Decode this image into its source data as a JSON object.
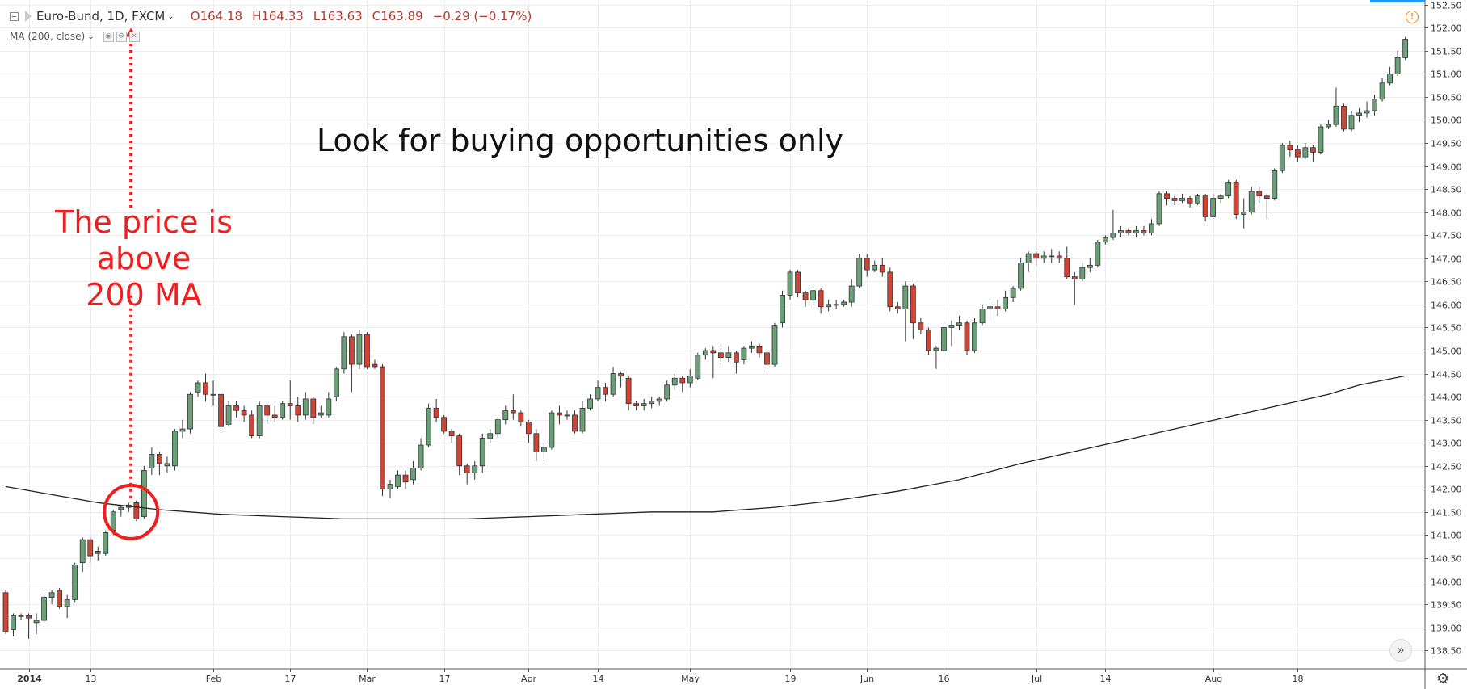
{
  "header": {
    "symbol": "Euro-Bund, 1D, FXCM",
    "open": "O164.18",
    "high": "H164.33",
    "low": "L163.63",
    "close": "C163.89",
    "change": "−0.29 (−0.17%)",
    "indicator": "MA (200, close)"
  },
  "annotations": {
    "headline": "Look for buying opportunities only",
    "callout_line1": "The price is",
    "callout_line2": "above",
    "callout_line3": "200 MA"
  },
  "colors": {
    "up": "#6a9f77",
    "down": "#d04436",
    "ma": "#222222",
    "annotation": "#f01e1e",
    "grid": "#ececec"
  },
  "icons": {
    "warning": "warning-circle-icon",
    "scroll": "double-chevron-right-icon",
    "settings": "gear-icon"
  },
  "chart_data": {
    "type": "candlestick",
    "symbol": "Euro-Bund",
    "timeframe": "1D",
    "ylim": [
      138.1,
      152.6
    ],
    "y_ticks": [
      138.5,
      139.0,
      139.5,
      140.0,
      140.5,
      141.0,
      141.5,
      142.0,
      142.5,
      143.0,
      143.5,
      144.0,
      144.5,
      145.0,
      145.5,
      146.0,
      146.5,
      147.0,
      147.5,
      148.0,
      148.5,
      149.0,
      149.5,
      150.0,
      150.5,
      151.0,
      151.5,
      152.0,
      152.5
    ],
    "y_tick_labels": [
      "138.50",
      "139.00",
      "139.50",
      "140.00",
      "140.50",
      "141.00",
      "141.50",
      "142.00",
      "142.50",
      "143.00",
      "143.50",
      "144.00",
      "144.50",
      "145.00",
      "145.50",
      "146.00",
      "146.50",
      "147.00",
      "147.50",
      "148.00",
      "148.50",
      "149.00",
      "149.50",
      "150.00",
      "150.50",
      "151.00",
      "151.50",
      "152.00",
      "152.50"
    ],
    "x_ticks": [
      {
        "label": "2014",
        "index": 3,
        "bold": true
      },
      {
        "label": "13",
        "index": 11
      },
      {
        "label": "Feb",
        "index": 27
      },
      {
        "label": "17",
        "index": 37
      },
      {
        "label": "Mar",
        "index": 47
      },
      {
        "label": "17",
        "index": 57
      },
      {
        "label": "Apr",
        "index": 68
      },
      {
        "label": "14",
        "index": 77
      },
      {
        "label": "May",
        "index": 89
      },
      {
        "label": "19",
        "index": 102
      },
      {
        "label": "Jun",
        "index": 112
      },
      {
        "label": "16",
        "index": 122
      },
      {
        "label": "Jul",
        "index": 134
      },
      {
        "label": "14",
        "index": 143
      },
      {
        "label": "Aug",
        "index": 157
      },
      {
        "label": "18",
        "index": 168
      }
    ],
    "candles": [
      [
        139.75,
        138.9,
        139.8,
        138.85
      ],
      [
        138.95,
        139.25,
        139.3,
        138.8
      ],
      [
        139.25,
        139.25,
        139.3,
        139.15
      ],
      [
        139.25,
        139.2,
        139.3,
        138.75
      ],
      [
        139.1,
        139.15,
        139.3,
        138.85
      ],
      [
        139.15,
        139.65,
        139.75,
        139.1
      ],
      [
        139.65,
        139.75,
        139.8,
        139.5
      ],
      [
        139.8,
        139.45,
        139.85,
        139.4
      ],
      [
        139.45,
        139.6,
        139.7,
        139.2
      ],
      [
        139.6,
        140.35,
        140.4,
        139.55
      ],
      [
        140.4,
        140.9,
        140.95,
        140.2
      ],
      [
        140.9,
        140.55,
        140.95,
        140.4
      ],
      [
        140.6,
        140.65,
        140.75,
        140.45
      ],
      [
        140.6,
        141.05,
        141.1,
        140.55
      ],
      [
        141.1,
        141.5,
        141.55,
        141.0
      ],
      [
        141.55,
        141.6,
        141.65,
        141.4
      ],
      [
        141.6,
        141.65,
        141.7,
        141.5
      ],
      [
        141.7,
        141.35,
        141.75,
        141.3
      ],
      [
        141.4,
        142.4,
        142.5,
        141.35
      ],
      [
        142.45,
        142.75,
        142.9,
        142.3
      ],
      [
        142.75,
        142.55,
        142.8,
        142.3
      ],
      [
        142.5,
        142.55,
        142.7,
        142.35
      ],
      [
        142.5,
        143.25,
        143.3,
        142.4
      ],
      [
        143.25,
        143.3,
        143.5,
        143.1
      ],
      [
        143.3,
        144.05,
        144.1,
        143.2
      ],
      [
        144.1,
        144.3,
        144.35,
        144.0
      ],
      [
        144.3,
        144.05,
        144.5,
        143.9
      ],
      [
        144.05,
        144.05,
        144.35,
        143.8
      ],
      [
        144.05,
        143.35,
        144.1,
        143.3
      ],
      [
        143.4,
        143.8,
        143.9,
        143.35
      ],
      [
        143.8,
        143.7,
        143.9,
        143.55
      ],
      [
        143.7,
        143.6,
        143.8,
        143.45
      ],
      [
        143.6,
        143.15,
        143.7,
        143.1
      ],
      [
        143.15,
        143.8,
        143.9,
        143.1
      ],
      [
        143.8,
        143.6,
        143.85,
        143.4
      ],
      [
        143.6,
        143.55,
        143.8,
        143.45
      ],
      [
        143.55,
        143.85,
        143.9,
        143.5
      ],
      [
        143.85,
        143.8,
        144.35,
        143.5
      ],
      [
        143.8,
        143.6,
        144.0,
        143.45
      ],
      [
        143.6,
        143.95,
        144.1,
        143.5
      ],
      [
        143.95,
        143.55,
        144.0,
        143.4
      ],
      [
        143.6,
        143.65,
        143.8,
        143.55
      ],
      [
        143.6,
        143.95,
        144.1,
        143.55
      ],
      [
        144.0,
        144.6,
        144.65,
        143.9
      ],
      [
        144.6,
        145.3,
        145.4,
        144.5
      ],
      [
        145.3,
        144.7,
        145.35,
        144.1
      ],
      [
        144.7,
        145.35,
        145.45,
        144.6
      ],
      [
        145.35,
        144.65,
        145.4,
        144.6
      ],
      [
        144.7,
        144.65,
        144.8,
        144.6
      ],
      [
        144.65,
        142.0,
        144.7,
        141.85
      ],
      [
        142.0,
        142.1,
        142.2,
        141.8
      ],
      [
        142.05,
        142.3,
        142.4,
        142.0
      ],
      [
        142.3,
        142.15,
        142.4,
        142.0
      ],
      [
        142.2,
        142.45,
        142.6,
        142.1
      ],
      [
        142.45,
        142.95,
        143.1,
        142.4
      ],
      [
        142.95,
        143.75,
        143.85,
        142.9
      ],
      [
        143.75,
        143.55,
        143.95,
        143.45
      ],
      [
        143.55,
        143.25,
        143.6,
        143.2
      ],
      [
        143.25,
        143.15,
        143.3,
        143.0
      ],
      [
        143.15,
        142.5,
        143.2,
        142.3
      ],
      [
        142.5,
        142.35,
        142.55,
        142.1
      ],
      [
        142.35,
        142.5,
        142.6,
        142.2
      ],
      [
        142.5,
        143.1,
        143.2,
        142.35
      ],
      [
        143.1,
        143.2,
        143.3,
        143.0
      ],
      [
        143.2,
        143.5,
        143.55,
        143.1
      ],
      [
        143.5,
        143.7,
        143.8,
        143.4
      ],
      [
        143.7,
        143.65,
        144.05,
        143.5
      ],
      [
        143.65,
        143.45,
        143.7,
        143.35
      ],
      [
        143.45,
        143.2,
        143.5,
        143.0
      ],
      [
        143.2,
        142.8,
        143.3,
        142.6
      ],
      [
        142.8,
        142.9,
        143.0,
        142.6
      ],
      [
        142.9,
        143.65,
        143.7,
        142.85
      ],
      [
        143.65,
        143.6,
        143.8,
        143.4
      ],
      [
        143.6,
        143.6,
        143.7,
        143.5
      ],
      [
        143.6,
        143.25,
        143.7,
        143.2
      ],
      [
        143.25,
        143.75,
        143.9,
        143.2
      ],
      [
        143.75,
        143.95,
        144.05,
        143.7
      ],
      [
        143.95,
        144.2,
        144.35,
        143.9
      ],
      [
        144.2,
        144.05,
        144.3,
        143.9
      ],
      [
        144.05,
        144.5,
        144.65,
        144.0
      ],
      [
        144.5,
        144.45,
        144.55,
        144.2
      ],
      [
        144.4,
        143.85,
        144.45,
        143.7
      ],
      [
        143.85,
        143.8,
        143.9,
        143.7
      ],
      [
        143.8,
        143.85,
        143.95,
        143.7
      ],
      [
        143.85,
        143.9,
        144.0,
        143.75
      ],
      [
        143.9,
        143.95,
        144.0,
        143.8
      ],
      [
        143.95,
        144.25,
        144.35,
        143.9
      ],
      [
        144.25,
        144.4,
        144.5,
        144.15
      ],
      [
        144.4,
        144.3,
        144.45,
        144.1
      ],
      [
        144.3,
        144.45,
        144.6,
        144.2
      ],
      [
        144.4,
        144.9,
        144.95,
        144.35
      ],
      [
        144.9,
        145.0,
        145.05,
        144.8
      ],
      [
        145.0,
        144.95,
        145.1,
        144.4
      ],
      [
        144.95,
        144.85,
        145.05,
        144.7
      ],
      [
        144.85,
        144.95,
        145.1,
        144.75
      ],
      [
        144.95,
        144.75,
        145.0,
        144.5
      ],
      [
        144.8,
        145.05,
        145.1,
        144.7
      ],
      [
        145.05,
        145.1,
        145.2,
        144.95
      ],
      [
        145.1,
        144.95,
        145.15,
        144.85
      ],
      [
        144.95,
        144.7,
        145.0,
        144.6
      ],
      [
        144.7,
        145.55,
        145.6,
        144.65
      ],
      [
        145.6,
        146.2,
        146.3,
        145.5
      ],
      [
        146.2,
        146.7,
        146.75,
        146.1
      ],
      [
        146.7,
        146.25,
        146.75,
        146.15
      ],
      [
        146.25,
        146.1,
        146.3,
        145.95
      ],
      [
        146.1,
        146.3,
        146.35,
        146.0
      ],
      [
        146.3,
        145.95,
        146.35,
        145.8
      ],
      [
        145.95,
        146.0,
        146.1,
        145.85
      ],
      [
        146.0,
        146.0,
        146.1,
        145.9
      ],
      [
        146.0,
        146.05,
        146.1,
        145.95
      ],
      [
        146.05,
        146.4,
        146.55,
        145.95
      ],
      [
        146.4,
        147.0,
        147.1,
        146.35
      ],
      [
        147.0,
        146.75,
        147.1,
        146.6
      ],
      [
        146.75,
        146.85,
        146.95,
        146.7
      ],
      [
        146.85,
        146.7,
        147.0,
        146.6
      ],
      [
        146.7,
        145.95,
        146.8,
        145.85
      ],
      [
        145.95,
        145.9,
        146.05,
        145.8
      ],
      [
        145.9,
        146.4,
        146.5,
        145.2
      ],
      [
        146.4,
        145.6,
        146.45,
        145.25
      ],
      [
        145.6,
        145.45,
        145.7,
        145.35
      ],
      [
        145.45,
        145.0,
        145.5,
        144.9
      ],
      [
        145.0,
        145.05,
        145.1,
        144.6
      ],
      [
        145.0,
        145.5,
        145.6,
        144.95
      ],
      [
        145.5,
        145.55,
        145.65,
        145.1
      ],
      [
        145.55,
        145.6,
        145.75,
        145.45
      ],
      [
        145.6,
        145.0,
        145.65,
        144.9
      ],
      [
        145.0,
        145.6,
        145.7,
        144.95
      ],
      [
        145.6,
        145.9,
        146.0,
        145.55
      ],
      [
        145.9,
        145.95,
        146.05,
        145.6
      ],
      [
        145.95,
        145.9,
        146.1,
        145.75
      ],
      [
        145.9,
        146.15,
        146.3,
        145.85
      ],
      [
        146.15,
        146.35,
        146.4,
        146.05
      ],
      [
        146.35,
        146.9,
        147.0,
        146.3
      ],
      [
        146.9,
        147.1,
        147.15,
        146.7
      ],
      [
        147.1,
        147.0,
        147.15,
        146.85
      ],
      [
        147.0,
        147.05,
        147.15,
        146.9
      ],
      [
        147.05,
        147.05,
        147.2,
        146.9
      ],
      [
        147.05,
        147.0,
        147.15,
        146.9
      ],
      [
        147.0,
        146.6,
        147.25,
        146.55
      ],
      [
        146.6,
        146.55,
        146.7,
        146.0
      ],
      [
        146.55,
        146.8,
        146.9,
        146.5
      ],
      [
        146.8,
        146.85,
        147.0,
        146.7
      ],
      [
        146.85,
        147.35,
        147.4,
        146.8
      ],
      [
        147.35,
        147.45,
        147.5,
        147.3
      ],
      [
        147.45,
        147.55,
        148.05,
        147.4
      ],
      [
        147.55,
        147.6,
        147.7,
        147.45
      ],
      [
        147.6,
        147.55,
        147.65,
        147.5
      ],
      [
        147.55,
        147.6,
        147.7,
        147.45
      ],
      [
        147.6,
        147.55,
        147.7,
        147.5
      ],
      [
        147.55,
        147.75,
        147.85,
        147.5
      ],
      [
        147.75,
        148.4,
        148.45,
        147.7
      ],
      [
        148.4,
        148.3,
        148.45,
        148.15
      ],
      [
        148.3,
        148.25,
        148.35,
        148.15
      ],
      [
        148.25,
        148.3,
        148.4,
        148.2
      ],
      [
        148.3,
        148.2,
        148.35,
        148.1
      ],
      [
        148.2,
        148.35,
        148.4,
        148.15
      ],
      [
        148.35,
        147.9,
        148.4,
        147.8
      ],
      [
        147.9,
        148.3,
        148.4,
        147.85
      ],
      [
        148.3,
        148.35,
        148.4,
        148.2
      ],
      [
        148.35,
        148.65,
        148.7,
        148.3
      ],
      [
        148.65,
        147.95,
        148.7,
        147.85
      ],
      [
        147.95,
        148.0,
        148.3,
        147.65
      ],
      [
        148.0,
        148.45,
        148.55,
        147.95
      ],
      [
        148.45,
        148.35,
        148.55,
        148.2
      ],
      [
        148.35,
        148.3,
        148.4,
        147.85
      ],
      [
        148.3,
        148.9,
        148.95,
        148.25
      ],
      [
        148.9,
        149.45,
        149.5,
        148.85
      ],
      [
        149.45,
        149.35,
        149.55,
        149.2
      ],
      [
        149.35,
        149.2,
        149.45,
        149.1
      ],
      [
        149.2,
        149.4,
        149.5,
        149.15
      ],
      [
        149.4,
        149.3,
        149.45,
        149.1
      ],
      [
        149.3,
        149.85,
        149.9,
        149.25
      ],
      [
        149.85,
        149.9,
        150.0,
        149.8
      ],
      [
        149.9,
        150.3,
        150.7,
        149.85
      ],
      [
        150.3,
        149.8,
        150.35,
        149.75
      ],
      [
        149.8,
        150.1,
        150.2,
        149.75
      ],
      [
        150.1,
        150.15,
        150.25,
        149.95
      ],
      [
        150.15,
        150.2,
        150.4,
        150.05
      ],
      [
        150.2,
        150.45,
        150.55,
        150.1
      ],
      [
        150.45,
        150.8,
        150.9,
        150.4
      ],
      [
        150.8,
        151.0,
        151.15,
        150.75
      ],
      [
        151.0,
        151.35,
        151.5,
        150.95
      ],
      [
        151.35,
        151.75,
        151.8,
        151.3
      ]
    ],
    "series": [
      {
        "name": "MA (200, close)",
        "values": [
          [
            0,
            142.05
          ],
          [
            12,
            141.7
          ],
          [
            20,
            141.55
          ],
          [
            28,
            141.45
          ],
          [
            36,
            141.4
          ],
          [
            44,
            141.35
          ],
          [
            52,
            141.35
          ],
          [
            60,
            141.35
          ],
          [
            68,
            141.4
          ],
          [
            76,
            141.45
          ],
          [
            84,
            141.5
          ],
          [
            92,
            141.5
          ],
          [
            100,
            141.6
          ],
          [
            108,
            141.75
          ],
          [
            116,
            141.95
          ],
          [
            124,
            142.2
          ],
          [
            132,
            142.55
          ],
          [
            140,
            142.85
          ],
          [
            148,
            143.15
          ],
          [
            156,
            143.45
          ],
          [
            164,
            143.75
          ],
          [
            172,
            144.05
          ],
          [
            176,
            144.25
          ],
          [
            182,
            144.45
          ]
        ]
      }
    ]
  }
}
